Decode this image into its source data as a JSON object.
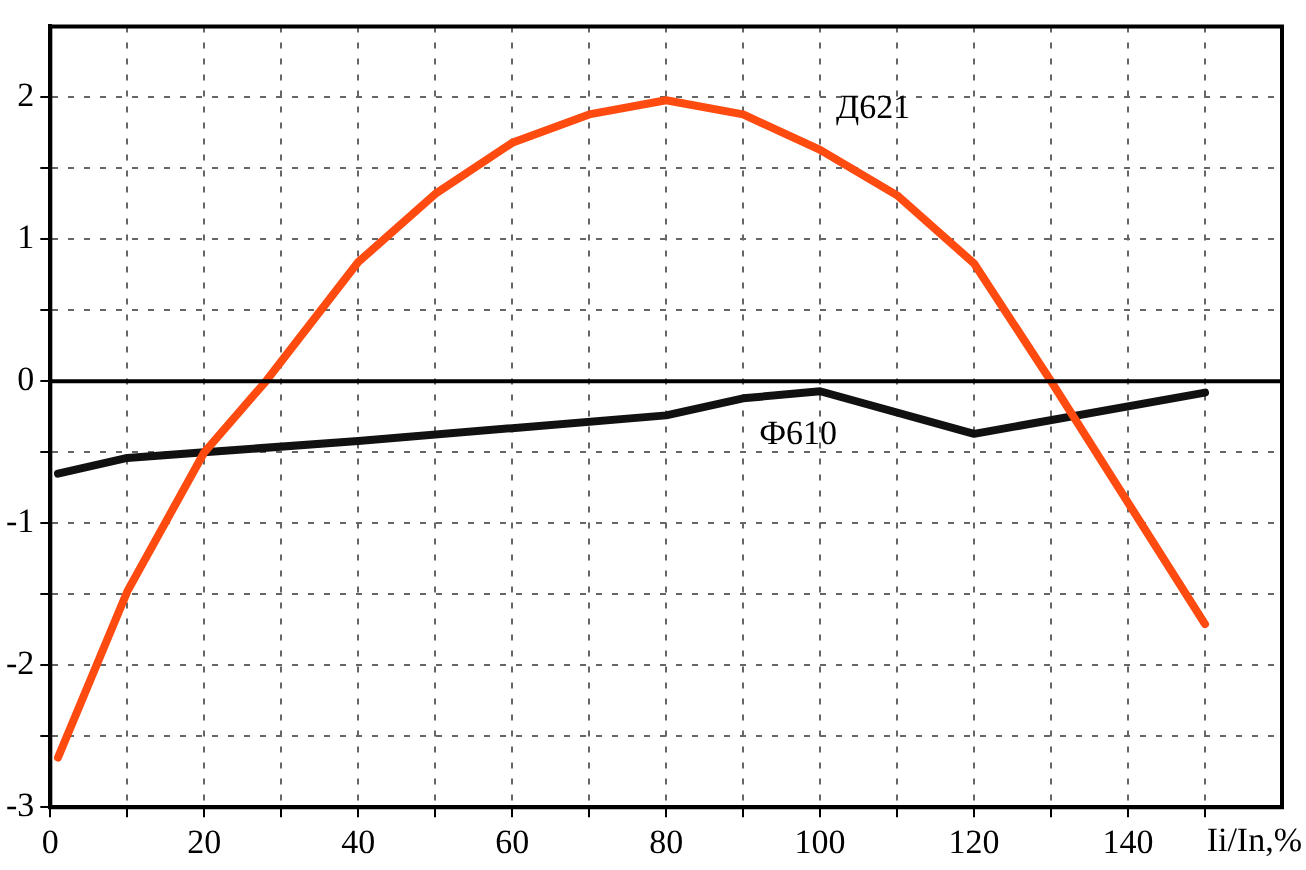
{
  "chart_data": {
    "type": "line",
    "xlabel": "Ii/In,%",
    "xlim": [
      0,
      160
    ],
    "ylim": [
      -3,
      2.5
    ],
    "xticks": [
      0,
      {
        "value": 10,
        "label": null
      },
      20,
      {
        "value": 30,
        "label": null
      },
      40,
      {
        "value": 50,
        "label": null
      },
      60,
      {
        "value": 70,
        "label": null
      },
      80,
      {
        "value": 90,
        "label": null
      },
      100,
      {
        "value": 110,
        "label": null
      },
      120,
      {
        "value": 130,
        "label": null
      },
      140,
      {
        "value": 150,
        "label": null
      }
    ],
    "yticks": [
      -3,
      {
        "value": -2.5,
        "label": null
      },
      -2,
      {
        "value": -1.5,
        "label": null
      },
      -1,
      {
        "value": -0.5,
        "label": null
      },
      0,
      {
        "value": 0.5,
        "label": null
      },
      1,
      {
        "value": 1.5,
        "label": null
      },
      2
    ],
    "grid": true,
    "marker": "none",
    "line_style": "solid",
    "ref_lines": [
      {
        "axis": "y",
        "value": 0,
        "color": "#000000"
      }
    ],
    "series": [
      {
        "name": "Д621",
        "color": "#ff4a10",
        "x": [
          1,
          10,
          20,
          28,
          40,
          50,
          60,
          70,
          80,
          90,
          100,
          110,
          120,
          130,
          150
        ],
        "values": [
          -2.65,
          -1.48,
          -0.5,
          0,
          0.84,
          1.32,
          1.68,
          1.88,
          1.98,
          1.88,
          1.63,
          1.31,
          0.83,
          0,
          -1.71
        ]
      },
      {
        "name": "Ф610",
        "color": "#111111",
        "x": [
          1,
          10,
          20,
          40,
          60,
          80,
          90,
          100,
          120,
          150
        ],
        "values": [
          -0.65,
          -0.54,
          -0.5,
          -0.42,
          -0.33,
          -0.24,
          -0.12,
          -0.07,
          -0.37,
          -0.08
        ]
      }
    ]
  }
}
